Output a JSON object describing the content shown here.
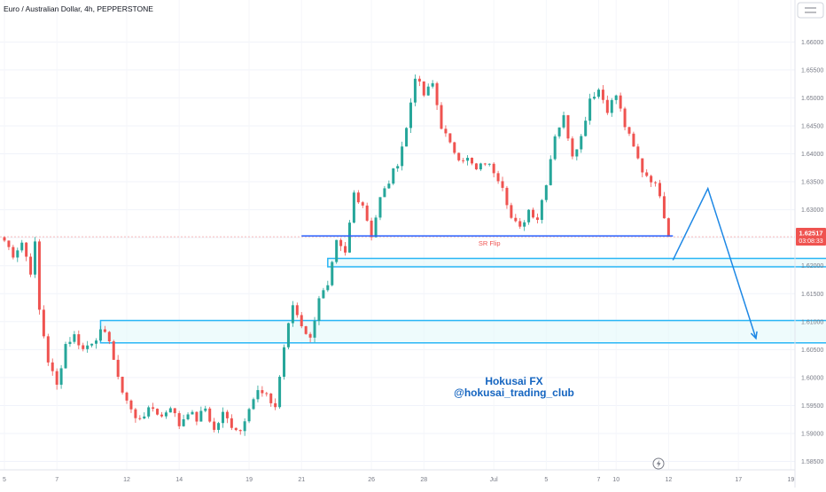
{
  "header": {
    "title": "Euro / Australian Dollar, 4h, PEPPERSTONE"
  },
  "price_badge": {
    "price": "1.62517",
    "countdown": "03:08:33"
  },
  "watermark": {
    "line1": "Hokusai FX",
    "line2": "@hokusai_trading_club"
  },
  "annotation": {
    "sr_flip": "SR Flip"
  },
  "colors": {
    "up": "#26a69a",
    "down": "#ef5350",
    "zone_stroke": "#29b6f6",
    "zone_fill": "#e0f7fa",
    "line": "#2962ff",
    "arrow": "#1e88e5",
    "watermark": "#1565c0",
    "price_line": "#f8bbbb"
  },
  "icons": {
    "bolt": "lightning-icon",
    "settings": "chart-settings-icon"
  },
  "chart_data": {
    "type": "candlestick",
    "symbol": "Euro / Australian Dollar",
    "timeframe": "4h",
    "ylim": [
      1.5835,
      1.6675
    ],
    "y_ticks": [
      "1.66000",
      "1.65500",
      "1.65000",
      "1.64500",
      "1.64000",
      "1.63500",
      "1.63000",
      "1.62500",
      "1.62000",
      "1.61500",
      "1.61000",
      "1.60500",
      "1.60000",
      "1.59500",
      "1.59000",
      "1.58500"
    ],
    "x_ticks": [
      {
        "label": "5",
        "index": 0
      },
      {
        "label": "7",
        "index": 12
      },
      {
        "label": "12",
        "index": 28
      },
      {
        "label": "14",
        "index": 40
      },
      {
        "label": "19",
        "index": 56
      },
      {
        "label": "21",
        "index": 68
      },
      {
        "label": "26",
        "index": 84
      },
      {
        "label": "28",
        "index": 96
      },
      {
        "label": "Jul",
        "index": 112
      },
      {
        "label": "5",
        "index": 124
      },
      {
        "label": "7",
        "index": 136
      },
      {
        "label": "10",
        "index": 140
      },
      {
        "label": "12",
        "index": 152
      },
      {
        "label": "17",
        "index": 168
      },
      {
        "label": "19",
        "index": 180
      }
    ],
    "last_price": 1.62517,
    "anchors": [
      [
        0,
        1.6245
      ],
      [
        2,
        1.622
      ],
      [
        4,
        1.6242
      ],
      [
        6,
        1.619
      ],
      [
        7,
        1.6238
      ],
      [
        8,
        1.612
      ],
      [
        10,
        1.603
      ],
      [
        12,
        1.5985
      ],
      [
        14,
        1.606
      ],
      [
        16,
        1.6075
      ],
      [
        18,
        1.605
      ],
      [
        20,
        1.6065
      ],
      [
        22,
        1.608
      ],
      [
        24,
        1.607
      ],
      [
        26,
        1.5995
      ],
      [
        28,
        1.596
      ],
      [
        30,
        1.5925
      ],
      [
        32,
        1.5935
      ],
      [
        34,
        1.5945
      ],
      [
        36,
        1.593
      ],
      [
        38,
        1.595
      ],
      [
        40,
        1.5915
      ],
      [
        42,
        1.594
      ],
      [
        44,
        1.5925
      ],
      [
        46,
        1.5945
      ],
      [
        48,
        1.5905
      ],
      [
        50,
        1.5935
      ],
      [
        52,
        1.5915
      ],
      [
        54,
        1.5905
      ],
      [
        56,
        1.595
      ],
      [
        58,
        1.5975
      ],
      [
        60,
        1.5965
      ],
      [
        62,
        1.5948
      ],
      [
        64,
        1.6055
      ],
      [
        66,
        1.613
      ],
      [
        68,
        1.6095
      ],
      [
        70,
        1.6068
      ],
      [
        72,
        1.6145
      ],
      [
        74,
        1.616
      ],
      [
        76,
        1.624
      ],
      [
        78,
        1.622
      ],
      [
        80,
        1.633
      ],
      [
        82,
        1.631
      ],
      [
        84,
        1.6255
      ],
      [
        86,
        1.632
      ],
      [
        88,
        1.635
      ],
      [
        90,
        1.6385
      ],
      [
        92,
        1.6445
      ],
      [
        94,
        1.654
      ],
      [
        96,
        1.6505
      ],
      [
        98,
        1.6525
      ],
      [
        100,
        1.645
      ],
      [
        102,
        1.6415
      ],
      [
        104,
        1.6395
      ],
      [
        106,
        1.639
      ],
      [
        108,
        1.637
      ],
      [
        110,
        1.6385
      ],
      [
        112,
        1.637
      ],
      [
        114,
        1.6345
      ],
      [
        116,
        1.6285
      ],
      [
        118,
        1.6265
      ],
      [
        120,
        1.63
      ],
      [
        122,
        1.6285
      ],
      [
        124,
        1.635
      ],
      [
        126,
        1.6435
      ],
      [
        128,
        1.6465
      ],
      [
        130,
        1.64
      ],
      [
        132,
        1.643
      ],
      [
        134,
        1.65
      ],
      [
        136,
        1.6515
      ],
      [
        138,
        1.648
      ],
      [
        140,
        1.6505
      ],
      [
        142,
        1.645
      ],
      [
        144,
        1.641
      ],
      [
        146,
        1.637
      ],
      [
        148,
        1.6355
      ],
      [
        150,
        1.633
      ],
      [
        152,
        1.62517
      ]
    ],
    "zones": [
      {
        "name": "upper-zone",
        "start_index": 74,
        "end_index": 190,
        "low": 1.6198,
        "high": 1.6213
      },
      {
        "name": "lower-zone",
        "start_index": 22,
        "end_index": 210,
        "low": 1.6062,
        "high": 1.6102
      }
    ],
    "sr_line": {
      "start_index": 68,
      "end_index": 153,
      "price": 1.62517
    },
    "projection_path": [
      [
        153,
        1.621
      ],
      [
        161,
        1.6338
      ],
      [
        172,
        1.607
      ]
    ]
  }
}
